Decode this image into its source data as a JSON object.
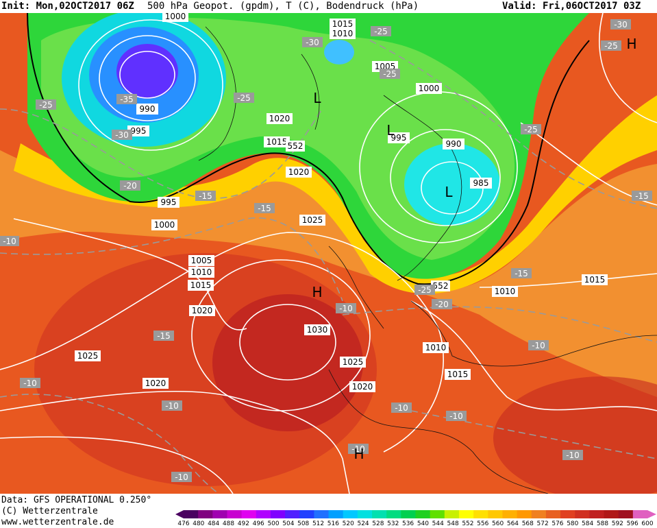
{
  "header": {
    "init": "Init: Mon,02OCT2017 06Z",
    "title": "500 hPa Geopot. (gpdm), T (C), Bodendruck (hPa)",
    "valid": "Valid: Fri,06OCT2017 03Z"
  },
  "footer": {
    "data_line": "Data: GFS OPERATIONAL 0.250°",
    "copyright": "(C) Wetterzentrale",
    "url": "www.wetterzentrale.de"
  },
  "color_scale": {
    "values": [
      "476",
      "480",
      "484",
      "488",
      "492",
      "496",
      "500",
      "504",
      "508",
      "512",
      "516",
      "520",
      "524",
      "528",
      "532",
      "536",
      "540",
      "544",
      "548",
      "552",
      "556",
      "560",
      "564",
      "568",
      "572",
      "576",
      "580",
      "584",
      "588",
      "592",
      "596",
      "600"
    ],
    "colors": [
      "#4a0060",
      "#800080",
      "#a000b0",
      "#c800d0",
      "#e000f0",
      "#b000ff",
      "#8000ff",
      "#5020ff",
      "#2040ff",
      "#2070ff",
      "#00a0ff",
      "#00c8ff",
      "#00e0e0",
      "#00e0b0",
      "#00dc80",
      "#00d050",
      "#20d020",
      "#60e000",
      "#c8f000",
      "#ffff00",
      "#ffe000",
      "#ffc800",
      "#ffb000",
      "#ff9800",
      "#f08020",
      "#e86020",
      "#e04020",
      "#d03020",
      "#c02020",
      "#b01818",
      "#a01020",
      "#e060c0"
    ]
  },
  "map": {
    "pressure_labels": [
      {
        "text": "1000"
      },
      {
        "text": "990"
      },
      {
        "text": "995"
      },
      {
        "text": "1015"
      },
      {
        "text": "1010"
      },
      {
        "text": "1005"
      },
      {
        "text": "1000"
      },
      {
        "text": "1020"
      },
      {
        "text": "1015"
      },
      {
        "text": "552"
      },
      {
        "text": "1020"
      },
      {
        "text": "995"
      },
      {
        "text": "990"
      },
      {
        "text": "985"
      },
      {
        "text": "995"
      },
      {
        "text": "1000"
      },
      {
        "text": "1025"
      },
      {
        "text": "1005"
      },
      {
        "text": "1010"
      },
      {
        "text": "1015"
      },
      {
        "text": "1020"
      },
      {
        "text": "1030"
      },
      {
        "text": "1025"
      },
      {
        "text": "1020"
      },
      {
        "text": "1025"
      },
      {
        "text": "1020"
      },
      {
        "text": "1010"
      },
      {
        "text": "1015"
      },
      {
        "text": "1010"
      },
      {
        "text": "1015"
      },
      {
        "text": "552"
      }
    ],
    "temp_labels": [
      {
        "text": "-25"
      },
      {
        "text": "-35"
      },
      {
        "text": "-30"
      },
      {
        "text": "-20"
      },
      {
        "text": "-15"
      },
      {
        "text": "-15"
      },
      {
        "text": "-25"
      },
      {
        "text": "-30"
      },
      {
        "text": "-25"
      },
      {
        "text": "-25"
      },
      {
        "text": "-25"
      },
      {
        "text": "-30"
      },
      {
        "text": "-25"
      },
      {
        "text": "-15"
      },
      {
        "text": "-10"
      },
      {
        "text": "-15"
      },
      {
        "text": "-10"
      },
      {
        "text": "-10"
      },
      {
        "text": "-10"
      },
      {
        "text": "-25"
      },
      {
        "text": "-20"
      },
      {
        "text": "-15"
      },
      {
        "text": "-10"
      },
      {
        "text": "-10"
      },
      {
        "text": "-10"
      },
      {
        "text": "-10"
      },
      {
        "text": "-10"
      },
      {
        "text": "-10"
      }
    ],
    "pressure_centers": [
      {
        "text": "L"
      },
      {
        "text": "L"
      },
      {
        "text": "L"
      },
      {
        "text": "H"
      },
      {
        "text": "H"
      },
      {
        "text": "H"
      }
    ]
  }
}
